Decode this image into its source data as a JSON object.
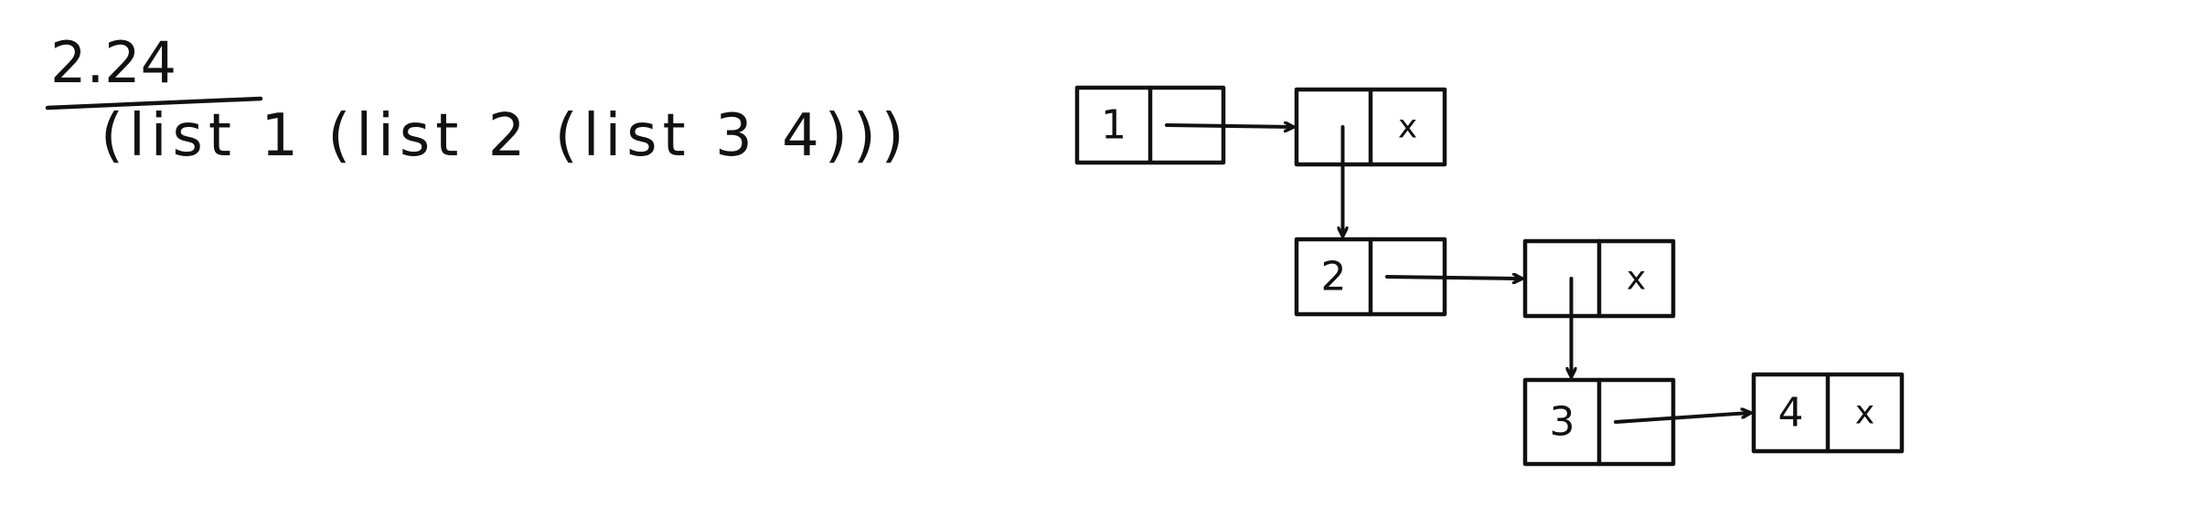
{
  "exercise": {
    "number": "2.24",
    "expression": "(list 1 (list 2 (list 3 4)))"
  },
  "diagram": {
    "pairs": [
      {
        "id": "p1",
        "car": "1",
        "cdr": ""
      },
      {
        "id": "p2",
        "car": "",
        "cdr": "x"
      },
      {
        "id": "p3",
        "car": "2",
        "cdr": ""
      },
      {
        "id": "p4",
        "car": "",
        "cdr": "x"
      },
      {
        "id": "p5",
        "car": "3",
        "cdr": ""
      },
      {
        "id": "p6",
        "car": "4",
        "cdr": "x"
      }
    ],
    "links": [
      {
        "from": "p1",
        "slot": "cdr",
        "to": "p2"
      },
      {
        "from": "p2",
        "slot": "car",
        "to": "p3"
      },
      {
        "from": "p3",
        "slot": "cdr",
        "to": "p4"
      },
      {
        "from": "p4",
        "slot": "car",
        "to": "p5"
      },
      {
        "from": "p5",
        "slot": "cdr",
        "to": "p6"
      }
    ]
  }
}
